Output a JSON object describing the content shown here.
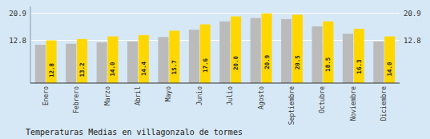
{
  "chart_data": {
    "type": "bar",
    "title": "Temperaturas Medias en villagonzalo de tormes",
    "categories": [
      "Enero",
      "Febrero",
      "Marzo",
      "Abril",
      "Mayo",
      "Junio",
      "Julio",
      "Agosto",
      "Septiembre",
      "Octubre",
      "Noviembre",
      "Diciembre"
    ],
    "series": [
      {
        "color": "#BBBBBB",
        "values": [
          11.5,
          11.8,
          12.2,
          12.5,
          13.8,
          16.0,
          18.5,
          19.5,
          19.2,
          17.0,
          14.8,
          12.5
        ]
      },
      {
        "color": "#FFD700",
        "values": [
          12.8,
          13.2,
          14.0,
          14.4,
          15.7,
          17.6,
          20.0,
          20.9,
          20.5,
          18.5,
          16.3,
          14.0
        ],
        "data_labels": true,
        "value_labels": [
          "12.8",
          "13.2",
          "14.0",
          "14.4",
          "15.7",
          "17.6",
          "20.0",
          "20.9",
          "20.5",
          "18.5",
          "16.3",
          "14.0"
        ]
      }
    ],
    "ylim": [
      0,
      23.0
    ],
    "yticks": [
      12.8,
      20.9
    ],
    "grid": true
  }
}
